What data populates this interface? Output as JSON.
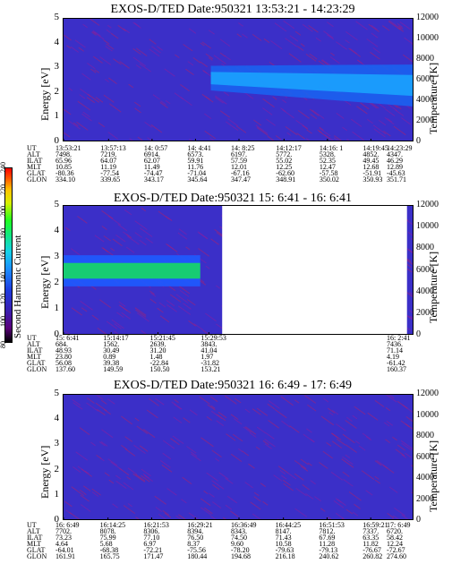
{
  "colorbar": {
    "label": "Second Harmonic Current",
    "ticks": [
      "80",
      "100",
      "120",
      "140",
      "160",
      "180",
      "200",
      "220",
      "240"
    ]
  },
  "panels": [
    {
      "title": "EXOS-D/TED   Date:950321  13:53:21 - 14:23:29",
      "ylabel": "Energy [eV]",
      "y2label": "Temperature [K]",
      "yticks": [
        "0",
        "1",
        "2",
        "3",
        "4",
        "5"
      ],
      "y2ticks": [
        "0",
        "2000",
        "4000",
        "6000",
        "8000",
        "10000",
        "12000"
      ],
      "info_labels": [
        "UT",
        "ALT",
        "ILAT",
        "MLT",
        "GLAT",
        "GLON"
      ],
      "info_cols": [
        [
          "13:53:21",
          "7498.",
          "65.96",
          "10.85",
          "-80.36",
          "334.10"
        ],
        [
          "13:57:13",
          "7219.",
          "64.07",
          "11.19",
          "-77.54",
          "339.65"
        ],
        [
          "14: 0:57",
          "6914.",
          "62.07",
          "11.49",
          "-74.47",
          "343.17"
        ],
        [
          "14: 4:41",
          "6573.",
          "59.91",
          "11.76",
          "-71.04",
          "345.64"
        ],
        [
          "14: 8:25",
          "6197.",
          "57.59",
          "12.01",
          "-67.16",
          "347.47"
        ],
        [
          "14:12:17",
          "5772.",
          "55.02",
          "12.25",
          "-62.60",
          "348.91"
        ],
        [
          "14:16: 1",
          "5328.",
          "52.35",
          "12.47",
          "-57.58",
          "350.02"
        ],
        [
          "14:19:45",
          "4852.",
          "49.45",
          "12.68",
          "-51.91",
          "350.93"
        ],
        [
          "14:23:29",
          "4347.",
          "46.29",
          "12.89",
          "-45.63",
          "351.71"
        ]
      ]
    },
    {
      "title": "EXOS-D/TED   Date:950321  15: 6:41 - 16: 6:41",
      "ylabel": "Energy [eV]",
      "y2label": "Temperature [K]",
      "yticks": [
        "0",
        "1",
        "2",
        "3",
        "4",
        "5"
      ],
      "y2ticks": [
        "0",
        "2000",
        "4000",
        "6000",
        "8000",
        "10000",
        "12000"
      ],
      "info_labels": [
        "UT",
        "ALT",
        "ILAT",
        "MLT",
        "GLAT",
        "GLON"
      ],
      "info_cols": [
        [
          "15: 6:41",
          "684.",
          "48.93",
          "23.80",
          "56.08",
          "137.60"
        ],
        [
          "15:14:17",
          "1562.",
          "30.49",
          "0.89",
          "39.38",
          "149.59"
        ],
        [
          "15:21:45",
          "2639.",
          "31.20",
          "1.48",
          "-22.84",
          "150.50"
        ],
        [
          "15:29:53",
          "3843.",
          "41.04",
          "1.97",
          "-31.82",
          "153.21"
        ],
        [
          "16: 2:41",
          "7436.",
          "71.14",
          "4.19",
          "-61.42",
          "160.37"
        ]
      ]
    },
    {
      "title": "EXOS-D/TED   Date:950321  16: 6:49 - 17: 6:49",
      "ylabel": "Energy [eV]",
      "y2label": "Temperature [K]",
      "yticks": [
        "0",
        "1",
        "2",
        "3",
        "4",
        "5"
      ],
      "y2ticks": [
        "0",
        "2000",
        "4000",
        "6000",
        "8000",
        "10000",
        "12000"
      ],
      "info_labels": [
        "UT",
        "ALT",
        "ILAT",
        "MLT",
        "GLAT",
        "GLON"
      ],
      "info_cols": [
        [
          "16: 6:49",
          "7702.",
          "73.23",
          "4.64",
          "-64.01",
          "161.91"
        ],
        [
          "16:14:25",
          "8078.",
          "75.99",
          "5.68",
          "-68.38",
          "165.75"
        ],
        [
          "16:21:53",
          "8306.",
          "77.10",
          "6.97",
          "-72.21",
          "171.47"
        ],
        [
          "16:29:21",
          "8394.",
          "76.50",
          "8.37",
          "-75.56",
          "180.44"
        ],
        [
          "16:36:49",
          "8343.",
          "74.50",
          "9.60",
          "-78.20",
          "194.68"
        ],
        [
          "16:44:25",
          "8147.",
          "71.43",
          "10.58",
          "-79.63",
          "216.18"
        ],
        [
          "16:51:53",
          "7812.",
          "67.69",
          "11.28",
          "-79.13",
          "240.62"
        ],
        [
          "16:59:21",
          "7337.",
          "63.35",
          "11.82",
          "-76.67",
          "260.82"
        ],
        [
          "17: 6:49",
          "6720.",
          "58.42",
          "12.24",
          "-72.67",
          "274.60"
        ]
      ]
    }
  ],
  "chart_data": [
    {
      "type": "heatmap",
      "title": "EXOS-D/TED   Date:950321  13:53:21 - 14:23:29",
      "xlabel": "UT",
      "ylabel": "Energy [eV]",
      "y2label": "Temperature [K]",
      "ylim": [
        0,
        5
      ],
      "y2lim": [
        0,
        12000
      ],
      "colorbar_label": "Second Harmonic Current",
      "colorbar_range": [
        80,
        240
      ],
      "x": [
        "13:53:21",
        "13:57:13",
        "14: 0:57",
        "14: 4:41",
        "14: 8:25",
        "14:12:17",
        "14:16: 1",
        "14:19:45",
        "14:23:29"
      ],
      "features": [
        {
          "kind": "band",
          "x_start": "14: 6:00",
          "x_end": "14:23:29",
          "energy_center": [
            2.6,
            2.3
          ],
          "energy_width": [
            1.0,
            1.7
          ],
          "level": 150
        }
      ]
    },
    {
      "type": "heatmap",
      "title": "EXOS-D/TED   Date:950321  15: 6:41 - 16: 6:41",
      "xlabel": "UT",
      "ylabel": "Energy [eV]",
      "y2label": "Temperature [K]",
      "ylim": [
        0,
        5
      ],
      "y2lim": [
        0,
        12000
      ],
      "colorbar_label": "Second Harmonic Current",
      "colorbar_range": [
        80,
        240
      ],
      "x": [
        "15: 6:41",
        "15:14:17",
        "15:21:45",
        "15:29:53",
        "16: 2:41"
      ],
      "features": [
        {
          "kind": "band",
          "x_start": "15: 6:41",
          "x_end": "15:28:30",
          "energy_center": 2.5,
          "energy_width": 1.2,
          "level": 185
        },
        {
          "kind": "gap",
          "x_start": "15:32:00",
          "x_end": "16: 1:30"
        }
      ]
    },
    {
      "type": "heatmap",
      "title": "EXOS-D/TED   Date:950321  16: 6:49 - 17: 6:49",
      "xlabel": "UT",
      "ylabel": "Energy [eV]",
      "y2label": "Temperature [K]",
      "ylim": [
        0,
        5
      ],
      "y2lim": [
        0,
        12000
      ],
      "colorbar_label": "Second Harmonic Current",
      "colorbar_range": [
        80,
        240
      ],
      "x": [
        "16: 6:49",
        "16:14:25",
        "16:21:53",
        "16:29:21",
        "16:36:49",
        "16:44:25",
        "16:51:53",
        "16:59:21",
        "17: 6:49"
      ],
      "features": []
    }
  ]
}
